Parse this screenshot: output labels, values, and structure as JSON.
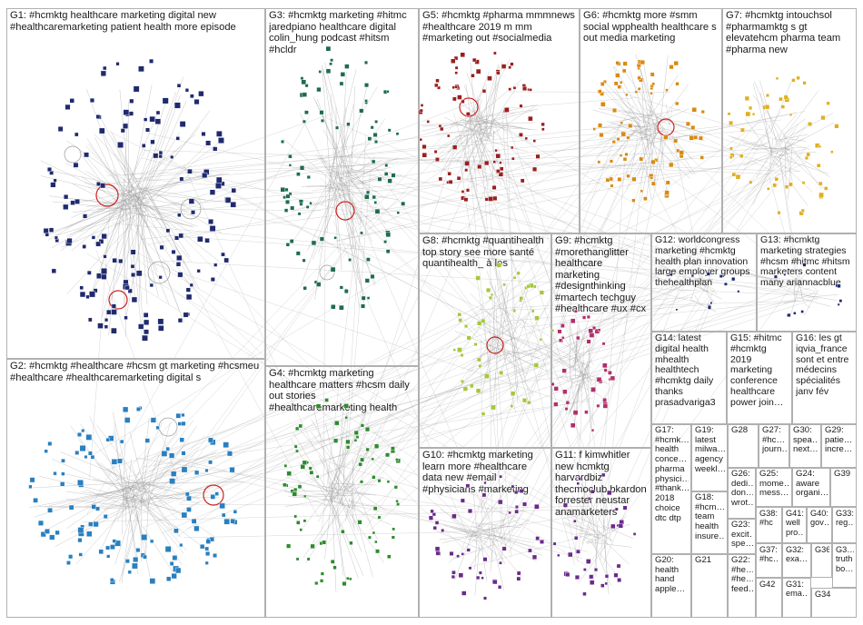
{
  "colors": {
    "navy": "#1f2a6e",
    "blue": "#2a7fbf",
    "teal": "#1e6b50",
    "green": "#2f8a2f",
    "maroon": "#9a1f1f",
    "orange": "#d98a12",
    "gold": "#e0b020",
    "lime": "#a5c73a",
    "purple": "#6a2a8a",
    "magenta": "#b0306a",
    "edge": "#9a9a9a",
    "border": "#b0b0b0"
  },
  "groups": [
    {
      "id": "G1",
      "label": "G1: #hcmktg healthcare marketing digital new #healthcaremarketing patient health more episode"
    },
    {
      "id": "G2",
      "label": "G2: #hcmktg #healthcare #hcsm gt marketing #hcsmeu #healthcare #healthcaremarketing digital s"
    },
    {
      "id": "G3",
      "label": "G3: #hcmktg marketing #hitmc jaredpiano healthcare digital colin_hung podcast #hitsm #hcldr"
    },
    {
      "id": "G4",
      "label": "G4: #hcmktg marketing healthcare matters #hcsm daily out stories #healthcaremarketing health"
    },
    {
      "id": "G5",
      "label": "G5: #hcmktg #pharma mmmnews #healthcare 2019 m mm #marketing out #socialmedia"
    },
    {
      "id": "G6",
      "label": "G6: #hcmktg more #smm social wpphealth healthcare s out media marketing"
    },
    {
      "id": "G7",
      "label": "G7: #hcmktg intouchsol #pharmamktg s gt elevatehcm pharma team #pharma new"
    },
    {
      "id": "G8",
      "label": "G8: #hcmktg #quantihealth top story see more santé quantihealth_ à les"
    },
    {
      "id": "G9",
      "label": "G9: #hcmktg #morethanglitter healthcare marketing #designthinking #martech techguy #healthcare #ux #cx"
    },
    {
      "id": "G10",
      "label": "G10: #hcmktg marketing learn more #healthcare data new #email #physicians #marketing"
    },
    {
      "id": "G11",
      "label": "G11: f kimwhitler new hcmktg harvardbiz thecmoclub bkardon forrester neustar anamarketers"
    },
    {
      "id": "G12",
      "label": "G12: worldcongress marketing #hcmktg health plan innovation large employer groups thehealthplan"
    },
    {
      "id": "G13",
      "label": "G13: #hcmktg marketing strategies #hcsm #hitmc #hitsm marketers content many ariannacblue"
    },
    {
      "id": "G14",
      "label": "G14: latest digital health mhealth healthtech #hcmktg daily thanks prasadvarigа3"
    },
    {
      "id": "G15",
      "label": "G15: #hitmc #hcmktg 2019 marketing conference healthcare power join…"
    },
    {
      "id": "G16",
      "label": "G16: les gt iqvia_france sont et entre médecins spécialités janv fév"
    },
    {
      "id": "G17",
      "label": "G17: #hcmk… health conce… pharma physici… #thank… 2018 choice dtc dtp"
    },
    {
      "id": "G18",
      "label": "G18: #hcm… team health insure…"
    },
    {
      "id": "G19",
      "label": "G19: latest milwa… agency weekl…"
    },
    {
      "id": "G20",
      "label": "G20: health hand apple…"
    },
    {
      "id": "G21",
      "label": "G21"
    },
    {
      "id": "G22",
      "label": "G22: #he… #he… feed…"
    },
    {
      "id": "G23",
      "label": "G23: excit… spe…"
    },
    {
      "id": "G24",
      "label": "G24: aware organi…"
    },
    {
      "id": "G25",
      "label": "G25: mome… mess…"
    },
    {
      "id": "G26",
      "label": "G26: dedi… don… wrot…"
    },
    {
      "id": "G27",
      "label": "G27: #hc… journ…"
    },
    {
      "id": "G28",
      "label": "G28"
    },
    {
      "id": "G29",
      "label": "G29: patie… incre…"
    },
    {
      "id": "G30",
      "label": "G30: spea… next…"
    },
    {
      "id": "G31",
      "label": "G31: ema…"
    },
    {
      "id": "G32",
      "label": "G32: exa…"
    },
    {
      "id": "G33",
      "label": "G33: reg…"
    },
    {
      "id": "G34",
      "label": "G34"
    },
    {
      "id": "G35",
      "label": "G3… truth bo…"
    },
    {
      "id": "G36",
      "label": "G36"
    },
    {
      "id": "G37",
      "label": "G37: #hc…"
    },
    {
      "id": "G38",
      "label": "G38: #hc"
    },
    {
      "id": "G39",
      "label": "G39"
    },
    {
      "id": "G40",
      "label": "G40: gov…"
    },
    {
      "id": "G41",
      "label": "G41: well pro…"
    },
    {
      "id": "G42",
      "label": "G42"
    }
  ]
}
